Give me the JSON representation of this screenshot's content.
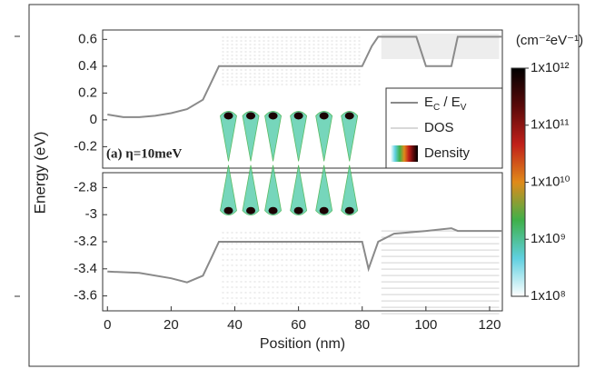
{
  "chart_data": [
    {
      "type": "line",
      "xlim": [
        -1.5,
        124
      ],
      "ylim": [
        -0.36,
        0.67
      ],
      "yticks": [
        -0.2,
        0.0,
        0.2,
        0.4,
        0.6
      ],
      "ylabel": "Energy (eV)",
      "annotation": "(a) η=10meV",
      "series": [
        {
          "name": "EC / EV",
          "color": "#8a8a8a",
          "x": [
            0,
            5,
            10,
            15,
            20,
            25,
            30,
            33,
            35,
            80,
            83,
            85,
            97,
            100,
            108,
            110,
            124
          ],
          "values": [
            0.04,
            0.02,
            0.02,
            0.03,
            0.05,
            0.08,
            0.15,
            0.3,
            0.4,
            0.4,
            0.55,
            0.62,
            0.62,
            0.4,
            0.4,
            0.62,
            0.62
          ]
        }
      ],
      "peaks": {
        "x": [
          38,
          45,
          52,
          60,
          68,
          76
        ],
        "y": [
          0.03,
          0.03,
          0.03,
          0.03,
          0.03,
          0.03
        ],
        "density": [
          11.8,
          11.8,
          11.8,
          11.8,
          11.8,
          11.8
        ]
      },
      "legend": {
        "position": "lower right",
        "items": [
          "EC / EV",
          "DOS",
          "Density"
        ]
      },
      "colorbar": {
        "title": "(cm⁻²eV⁻¹)",
        "colors": [
          "#ffffff",
          "#5fd0e0",
          "#3fb04a",
          "#e08a1a",
          "#c0201a",
          "#5a0a0a",
          "#000000"
        ],
        "ticks": [
          {
            "value": 8,
            "label": "1x10⁸"
          },
          {
            "value": 9,
            "label": "1x10⁹"
          },
          {
            "value": 10,
            "label": "1x10¹⁰"
          },
          {
            "value": 11,
            "label": "1x10¹¹"
          },
          {
            "value": 12,
            "label": "1x10¹²"
          }
        ]
      }
    },
    {
      "type": "line",
      "xlim": [
        -1.5,
        124
      ],
      "ylim": [
        -3.71,
        -2.69
      ],
      "yticks": [
        -3.6,
        -3.4,
        -3.2,
        -3.0,
        -2.8
      ],
      "xticks": [
        0,
        20,
        40,
        60,
        80,
        100,
        120
      ],
      "xlabel": "Position (nm)",
      "series": [
        {
          "name": "EC / EV",
          "color": "#8a8a8a",
          "x": [
            0,
            10,
            20,
            25,
            30,
            33,
            35,
            80,
            82,
            85,
            90,
            100,
            108,
            110,
            124
          ],
          "values": [
            -3.42,
            -3.43,
            -3.47,
            -3.5,
            -3.45,
            -3.3,
            -3.2,
            -3.2,
            -3.4,
            -3.2,
            -3.14,
            -3.12,
            -3.1,
            -3.12,
            -3.12
          ]
        }
      ],
      "peaks": {
        "x": [
          38,
          45,
          52,
          60,
          68,
          76
        ],
        "y": [
          -2.97,
          -2.97,
          -2.97,
          -2.97,
          -2.97,
          -2.97
        ],
        "density": [
          11.8,
          11.8,
          11.8,
          11.8,
          11.8,
          11.8
        ]
      }
    }
  ]
}
